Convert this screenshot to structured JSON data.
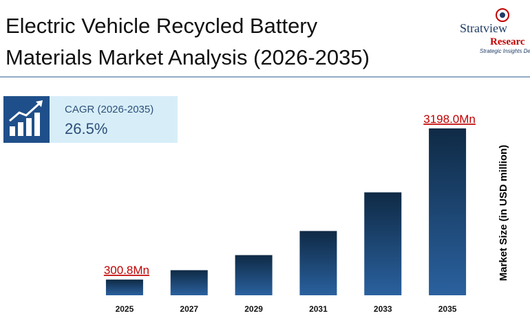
{
  "chart_data": {
    "type": "bar",
    "title": [
      "Electric Vehicle Recycled Battery",
      "Materials Market Analysis (2026-2035)"
    ],
    "logo": {
      "name": "Stratview",
      "name2": "Researc",
      "tagline": "Strategic Insights Deliv"
    },
    "cagr_label": "CAGR (2026-2035)",
    "cagr_value": "26.5%",
    "y_label": "Market Size (in USD million)",
    "categories": [
      "2025",
      "2027",
      "2029",
      "2031",
      "2033",
      "2035"
    ],
    "values": [
      300.8,
      481,
      770,
      1232,
      1972,
      3198.0
    ],
    "value_labels": [
      "300.8Mn",
      null,
      null,
      null,
      null,
      "3198.0Mn"
    ],
    "color": [
      "#0f2a45",
      "#2a619f"
    ]
  }
}
